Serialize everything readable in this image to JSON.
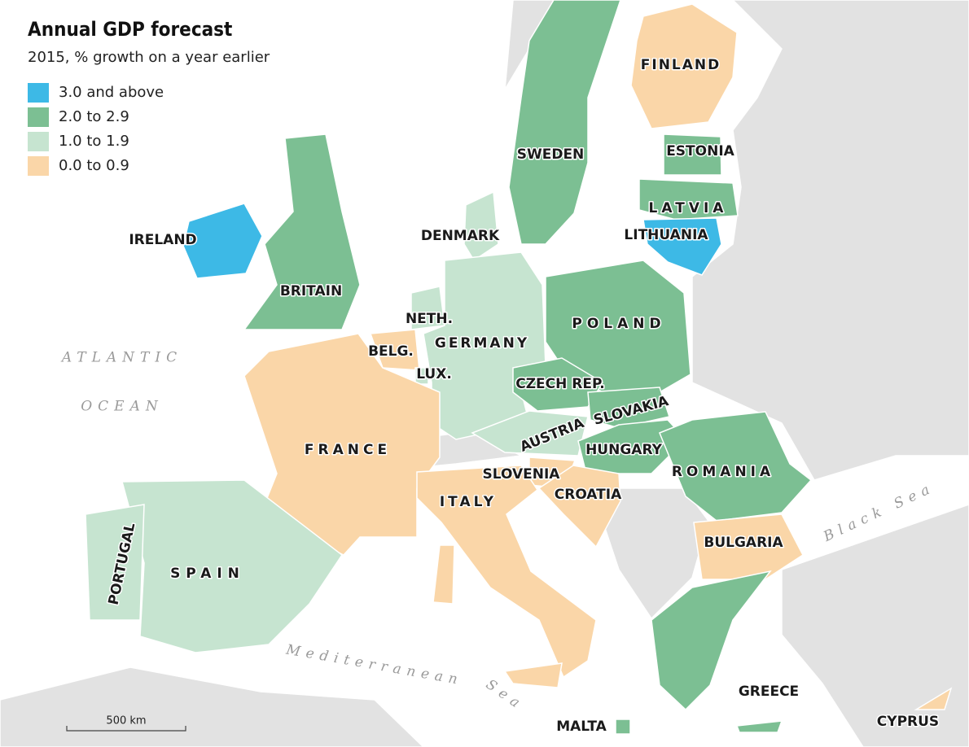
{
  "title": "Annual GDP forecast",
  "subtitle": "2015, % growth on a year earlier",
  "legend": [
    {
      "label": "3.0 and above",
      "color": "#3db9e6"
    },
    {
      "label": "2.0 to 2.9",
      "color": "#7cbf93"
    },
    {
      "label": "1.0 to 1.9",
      "color": "#c6e4d0"
    },
    {
      "label": "0.0 to 0.9",
      "color": "#fad6a8"
    }
  ],
  "countries": [
    {
      "label": "FINLAND",
      "color": "#fad6a8"
    },
    {
      "label": "SWEDEN",
      "color": "#7cbf93"
    },
    {
      "label": "ESTONIA",
      "color": "#7cbf93"
    },
    {
      "label": "LATVIA",
      "color": "#7cbf93"
    },
    {
      "label": "LITHUANIA",
      "color": "#3db9e6"
    },
    {
      "label": "IRELAND",
      "color": "#3db9e6"
    },
    {
      "label": "BRITAIN",
      "color": "#7cbf93"
    },
    {
      "label": "DENMARK",
      "color": "#c6e4d0"
    },
    {
      "label": "NETH.",
      "color": "#c6e4d0"
    },
    {
      "label": "BELG.",
      "color": "#fad6a8"
    },
    {
      "label": "LUX.",
      "color": "#c6e4d0"
    },
    {
      "label": "GERMANY",
      "color": "#c6e4d0"
    },
    {
      "label": "POLAND",
      "color": "#7cbf93"
    },
    {
      "label": "CZECH REP.",
      "color": "#7cbf93"
    },
    {
      "label": "SLOVAKIA",
      "color": "#7cbf93"
    },
    {
      "label": "AUSTRIA",
      "color": "#c6e4d0"
    },
    {
      "label": "HUNGARY",
      "color": "#7cbf93"
    },
    {
      "label": "SLOVENIA",
      "color": "#fad6a8"
    },
    {
      "label": "CROATIA",
      "color": "#fad6a8"
    },
    {
      "label": "ROMANIA",
      "color": "#7cbf93"
    },
    {
      "label": "BULGARIA",
      "color": "#fad6a8"
    },
    {
      "label": "GREECE",
      "color": "#7cbf93"
    },
    {
      "label": "FRANCE",
      "color": "#fad6a8"
    },
    {
      "label": "SPAIN",
      "color": "#c6e4d0"
    },
    {
      "label": "PORTUGAL",
      "color": "#c6e4d0"
    },
    {
      "label": "ITALY",
      "color": "#fad6a8"
    },
    {
      "label": "MALTA",
      "color": "#7cbf93"
    },
    {
      "label": "CYPRUS",
      "color": "#fad6a8"
    }
  ],
  "seas": [
    "ATLANTIC",
    "OCEAN",
    "Mediterranean",
    "Sea",
    "Black Sea"
  ],
  "scale_bar": "500 km"
}
